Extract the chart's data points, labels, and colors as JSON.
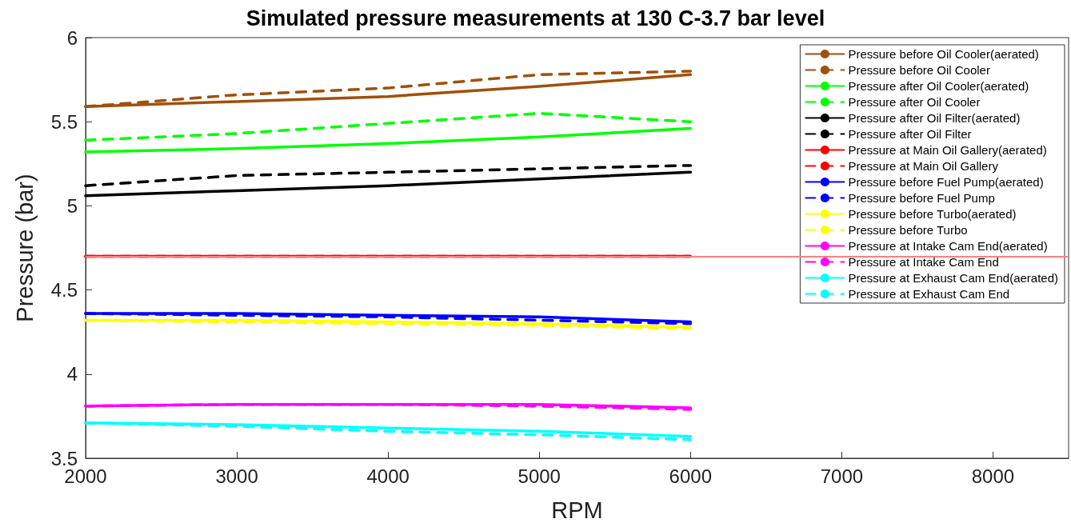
{
  "chart_data": {
    "type": "line",
    "title": "Simulated pressure measurements at 130 C-3.7 bar level",
    "xlabel": "RPM",
    "ylabel": "Pressure (bar)",
    "x": [
      2000,
      3000,
      4000,
      5000,
      6000
    ],
    "xlim": [
      2000,
      8500
    ],
    "xticks": [
      2000,
      3000,
      4000,
      5000,
      6000,
      7000,
      8000
    ],
    "ylim": [
      3.5,
      6
    ],
    "yticks": [
      3.5,
      4,
      4.5,
      5,
      5.5,
      6
    ],
    "grid": false,
    "legend": "top right",
    "marker": "none",
    "ref_lines": [
      {
        "axis": "y",
        "value": 4.7,
        "color": "#ff8080",
        "line_style": "solid"
      }
    ],
    "series": [
      {
        "name": "Pressure before Oil Cooler(aerated)",
        "color": "#a0500a",
        "line_style": "solid",
        "values": [
          5.59,
          5.62,
          5.65,
          5.71,
          5.78
        ]
      },
      {
        "name": "Pressure before Oil Cooler",
        "color": "#a0500a",
        "line_style": "dashed",
        "values": [
          5.59,
          5.66,
          5.7,
          5.78,
          5.8
        ]
      },
      {
        "name": "Pressure after Oil Cooler(aerated)",
        "color": "#00ff00",
        "line_style": "solid",
        "values": [
          5.32,
          5.34,
          5.37,
          5.41,
          5.46
        ]
      },
      {
        "name": "Pressure after Oil Cooler",
        "color": "#00ff00",
        "line_style": "dashed",
        "values": [
          5.39,
          5.43,
          5.49,
          5.55,
          5.5
        ]
      },
      {
        "name": "Pressure after Oil Filter(aerated)",
        "color": "#000000",
        "line_style": "solid",
        "values": [
          5.06,
          5.09,
          5.12,
          5.16,
          5.2
        ]
      },
      {
        "name": "Pressure after Oil Filter",
        "color": "#000000",
        "line_style": "dashed",
        "values": [
          5.12,
          5.18,
          5.2,
          5.22,
          5.24
        ]
      },
      {
        "name": "Pressure at Main Oil Gallery(aerated)",
        "color": "#ff0000",
        "line_style": "solid",
        "values": [
          4.7,
          4.7,
          4.7,
          4.7,
          4.7
        ]
      },
      {
        "name": "Pressure at Main Oil Gallery",
        "color": "#ff0000",
        "line_style": "dashed",
        "values": [
          4.7,
          4.7,
          4.7,
          4.7,
          4.7
        ]
      },
      {
        "name": "Pressure before Fuel Pump(aerated)",
        "color": "#0000ff",
        "line_style": "solid",
        "values": [
          4.36,
          4.36,
          4.35,
          4.34,
          4.31
        ]
      },
      {
        "name": "Pressure before Fuel Pump",
        "color": "#0000ff",
        "line_style": "dashed",
        "values": [
          4.36,
          4.35,
          4.34,
          4.32,
          4.3
        ]
      },
      {
        "name": "Pressure before Turbo(aerated)",
        "color": "#ffff00",
        "line_style": "solid",
        "values": [
          4.32,
          4.32,
          4.31,
          4.3,
          4.28
        ]
      },
      {
        "name": "Pressure before Turbo",
        "color": "#ffff00",
        "line_style": "dashed",
        "values": [
          4.32,
          4.31,
          4.3,
          4.29,
          4.27
        ]
      },
      {
        "name": "Pressure at Intake Cam End(aerated)",
        "color": "#ff00ff",
        "line_style": "solid",
        "values": [
          3.81,
          3.82,
          3.82,
          3.82,
          3.8
        ]
      },
      {
        "name": "Pressure at Intake Cam End",
        "color": "#ff00ff",
        "line_style": "dashed",
        "values": [
          3.81,
          3.82,
          3.82,
          3.81,
          3.79
        ]
      },
      {
        "name": "Pressure at Exhaust Cam End(aerated)",
        "color": "#00ffff",
        "line_style": "solid",
        "values": [
          3.71,
          3.7,
          3.68,
          3.66,
          3.63
        ]
      },
      {
        "name": "Pressure at Exhaust Cam End",
        "color": "#00ffff",
        "line_style": "dashed",
        "values": [
          3.71,
          3.69,
          3.66,
          3.64,
          3.61
        ]
      }
    ]
  }
}
